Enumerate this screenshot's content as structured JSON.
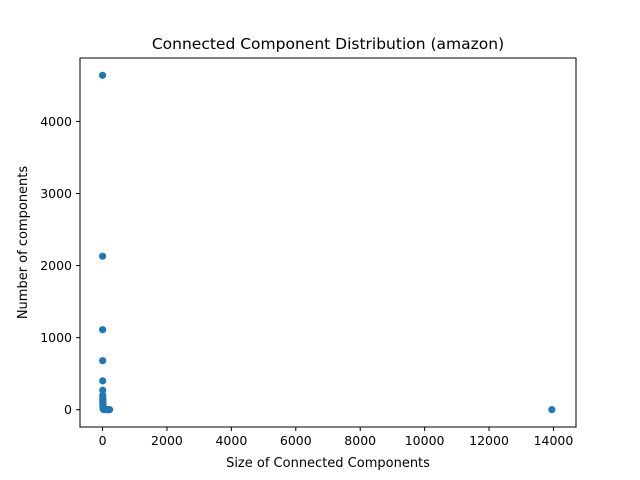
{
  "chart_data": {
    "type": "scatter",
    "title": "Connected Component Distribution (amazon)",
    "xlabel": "Size of Connected Components",
    "ylabel": "Number of components",
    "xlim": [
      -700,
      14700
    ],
    "ylim": [
      -240,
      4880
    ],
    "xticks": [
      0,
      2000,
      4000,
      6000,
      8000,
      10000,
      12000,
      14000
    ],
    "yticks": [
      0,
      1000,
      2000,
      3000,
      4000
    ],
    "grid": false,
    "marker_color": "#1f77b4",
    "series": [
      {
        "x": [
          1,
          2,
          3,
          4,
          5,
          6,
          7,
          8,
          9,
          10,
          11,
          12,
          13,
          14,
          15,
          16,
          17,
          18,
          19,
          20,
          22,
          24,
          26,
          28,
          30,
          35,
          40,
          45,
          50,
          60,
          70,
          80,
          100,
          120,
          140,
          160,
          180,
          200,
          220,
          13950
        ],
        "y": [
          4640,
          2130,
          1110,
          680,
          400,
          270,
          200,
          160,
          130,
          110,
          90,
          75,
          60,
          50,
          42,
          36,
          30,
          25,
          20,
          16,
          12,
          10,
          9,
          8,
          7,
          6,
          5,
          4,
          4,
          3,
          3,
          2,
          2,
          2,
          1,
          1,
          1,
          1,
          1,
          1
        ]
      }
    ]
  }
}
